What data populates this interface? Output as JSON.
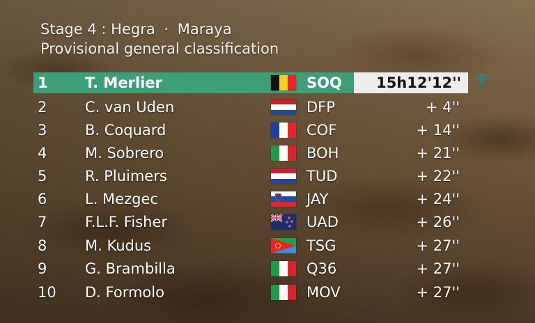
{
  "header": {
    "stage": "Stage 4",
    "route_from": "Hegra",
    "route_to": "Maraya",
    "subtitle": "Provisional general classification"
  },
  "classification": [
    {
      "pos": "1",
      "rider": "T. Merlier",
      "flag": "belgium-flag",
      "team": "SOQ",
      "time": "15h12'12''"
    },
    {
      "pos": "2",
      "rider": "C. van Uden",
      "flag": "netherlands-flag",
      "team": "DFP",
      "time": "+ 4''"
    },
    {
      "pos": "3",
      "rider": "B. Coquard",
      "flag": "france-flag",
      "team": "COF",
      "time": "+ 14''"
    },
    {
      "pos": "4",
      "rider": "M. Sobrero",
      "flag": "italy-flag",
      "team": "BOH",
      "time": "+ 21''"
    },
    {
      "pos": "5",
      "rider": "R. Pluimers",
      "flag": "netherlands-flag",
      "team": "TUD",
      "time": "+ 22''"
    },
    {
      "pos": "6",
      "rider": "L. Mezgec",
      "flag": "slovenia-flag",
      "team": "JAY",
      "time": "+ 24''"
    },
    {
      "pos": "7",
      "rider": "F.L.F. Fisher",
      "flag": "new-zealand-flag",
      "team": "UAD",
      "time": "+ 26''"
    },
    {
      "pos": "8",
      "rider": "M. Kudus",
      "flag": "eritrea-flag",
      "team": "TSG",
      "time": "+ 27''"
    },
    {
      "pos": "9",
      "rider": "G. Brambilla",
      "flag": "italy-flag",
      "team": "Q36",
      "time": "+ 27''"
    },
    {
      "pos": "10",
      "rider": "D. Formolo",
      "flag": "italy-flag",
      "team": "MOV",
      "time": "+ 27''"
    }
  ],
  "colors": {
    "leader_bar": "#3e9e78",
    "time_box": "#ededeb",
    "text": "#ffffff"
  },
  "icons": {
    "leader_badge": "trophy-icon"
  }
}
